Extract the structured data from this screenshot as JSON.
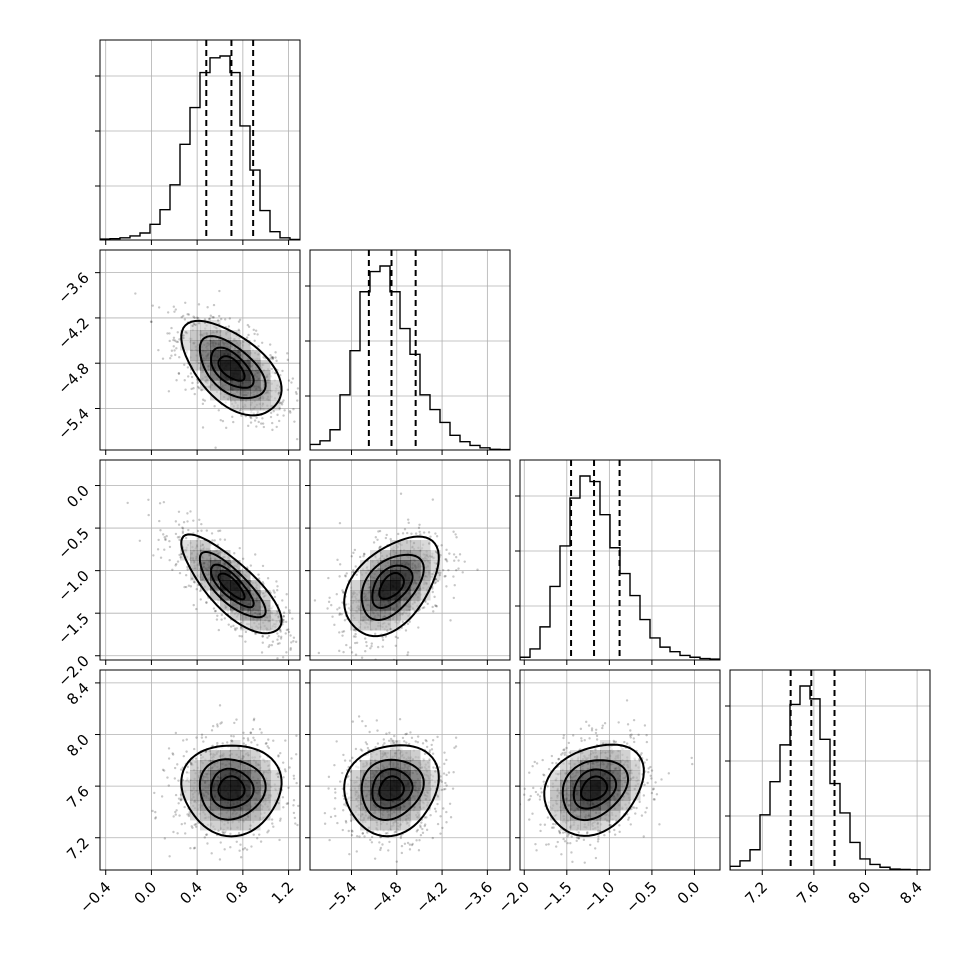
{
  "chart_data": {
    "type": "corner",
    "grid": true,
    "parameters": [
      {
        "index": 0,
        "median": 0.7,
        "q16": 0.48,
        "q84": 0.89,
        "sd": 0.21,
        "range": [
          -0.45,
          1.3
        ],
        "ticks": [
          -0.4,
          0.0,
          0.4,
          0.8,
          1.2
        ],
        "tick_labels": [
          "−0.4",
          "0.0",
          "0.4",
          "0.8",
          "1.2"
        ],
        "hist": [
          0.005,
          0.007,
          0.012,
          0.022,
          0.038,
          0.085,
          0.165,
          0.3,
          0.52,
          0.72,
          0.91,
          0.99,
          1.0,
          0.91,
          0.62,
          0.38,
          0.16,
          0.045,
          0.012,
          0.003
        ]
      },
      {
        "index": 1,
        "median": -4.87,
        "q16": -5.17,
        "q84": -4.55,
        "sd": 0.3,
        "range": [
          -5.95,
          -3.3
        ],
        "ticks": [
          -5.4,
          -4.8,
          -4.2,
          -3.6
        ],
        "tick_labels": [
          "−5.4",
          "−4.8",
          "−4.2",
          "−3.6"
        ],
        "hist": [
          0.03,
          0.05,
          0.11,
          0.3,
          0.54,
          0.86,
          0.97,
          1.0,
          0.86,
          0.66,
          0.52,
          0.3,
          0.22,
          0.15,
          0.08,
          0.045,
          0.025,
          0.012,
          0.004,
          0.002
        ]
      },
      {
        "index": 2,
        "median": -1.18,
        "q16": -1.45,
        "q84": -0.88,
        "sd": 0.28,
        "range": [
          -2.05,
          0.3
        ],
        "ticks": [
          -2.0,
          -1.5,
          -1.0,
          -0.5,
          0.0
        ],
        "tick_labels": [
          "−2.0",
          "−1.5",
          "−1.0",
          "−0.5",
          "0.0"
        ],
        "hist": [
          0.015,
          0.06,
          0.18,
          0.4,
          0.62,
          0.88,
          1.0,
          0.97,
          0.79,
          0.61,
          0.47,
          0.35,
          0.22,
          0.12,
          0.07,
          0.045,
          0.025,
          0.015,
          0.008,
          0.005
        ]
      },
      {
        "index": 3,
        "median": 7.58,
        "q16": 7.42,
        "q84": 7.76,
        "sd": 0.17,
        "range": [
          6.95,
          8.5
        ],
        "ticks": [
          7.2,
          7.6,
          8.0,
          8.4
        ],
        "tick_labels": [
          "7.2",
          "7.6",
          "8.0",
          "8.4"
        ],
        "hist": [
          0.02,
          0.05,
          0.11,
          0.3,
          0.48,
          0.68,
          0.9,
          1.0,
          0.93,
          0.71,
          0.47,
          0.31,
          0.15,
          0.06,
          0.03,
          0.015,
          0.005,
          0.003,
          0.001,
          0.0
        ]
      }
    ],
    "correlations": [
      {
        "x": 0,
        "y": 1,
        "rho": -0.55
      },
      {
        "x": 0,
        "y": 2,
        "rho": -0.78
      },
      {
        "x": 1,
        "y": 2,
        "rho": 0.45
      },
      {
        "x": 0,
        "y": 3,
        "rho": 0.0
      },
      {
        "x": 1,
        "y": 3,
        "rho": 0.12
      },
      {
        "x": 2,
        "y": 3,
        "rho": 0.25
      }
    ],
    "contour_levels_sigma": [
      0.5,
      1.0,
      1.5,
      2.0
    ],
    "quantiles": [
      0.16,
      0.5,
      0.84
    ],
    "colors": {
      "line": "#000000",
      "grid": "#b0b0b0",
      "density": "#000000",
      "background": "#ffffff"
    }
  }
}
